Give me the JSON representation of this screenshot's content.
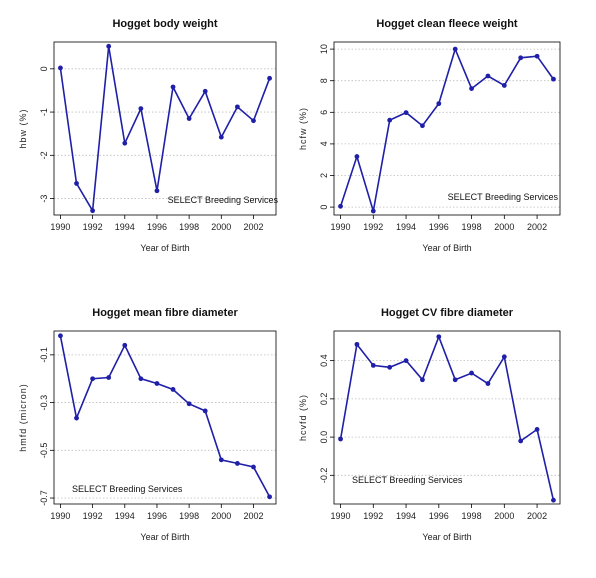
{
  "chart_data": [
    {
      "type": "line",
      "title": "Hogget body weight",
      "xlabel": "Year of Birth",
      "ylabel": "hbw (%)",
      "annotation": "SELECT Breeding Services",
      "x": [
        1990,
        1991,
        1992,
        1993,
        1994,
        1995,
        1996,
        1997,
        1998,
        1999,
        2000,
        2001,
        2002,
        2003
      ],
      "values": [
        0.02,
        -2.65,
        -3.28,
        0.52,
        -1.72,
        -0.92,
        -2.82,
        -0.42,
        -1.15,
        -0.52,
        -1.58,
        -0.88,
        -1.2,
        -0.22
      ],
      "xticks": [
        "1990",
        "1992",
        "1994",
        "1996",
        "1998",
        "2000",
        "2002"
      ],
      "yticks": [
        "-3",
        "-2",
        "-1",
        "0"
      ],
      "xlim": [
        1989.6,
        2003.4
      ],
      "ylim": [
        -3.38,
        0.62
      ],
      "grid": "y",
      "color": "#1f1fa8"
    },
    {
      "type": "line",
      "title": "Hogget clean fleece weight",
      "xlabel": "Year of Birth",
      "ylabel": "hcfw (%)",
      "annotation": "SELECT Breeding Services",
      "x": [
        1990,
        1991,
        1992,
        1993,
        1994,
        1995,
        1996,
        1997,
        1998,
        1999,
        2000,
        2001,
        2002,
        2003
      ],
      "values": [
        0.05,
        3.2,
        -0.25,
        5.5,
        5.98,
        5.15,
        6.55,
        10.0,
        7.5,
        8.3,
        7.7,
        9.45,
        9.55,
        8.1
      ],
      "xticks": [
        "1990",
        "1992",
        "1994",
        "1996",
        "1998",
        "2000",
        "2002"
      ],
      "yticks": [
        "0",
        "2",
        "4",
        "6",
        "8",
        "10"
      ],
      "xlim": [
        1989.6,
        2003.4
      ],
      "ylim": [
        -0.5,
        10.45
      ],
      "grid": "y",
      "color": "#1f1fa8"
    },
    {
      "type": "line",
      "title": "Hogget mean fibre diameter",
      "xlabel": "Year of Birth",
      "ylabel": "hmfd (micron)",
      "annotation": "SELECT Breeding Services",
      "x": [
        1990,
        1991,
        1992,
        1993,
        1994,
        1995,
        1996,
        1997,
        1998,
        1999,
        2000,
        2001,
        2002,
        2003
      ],
      "values": [
        -0.02,
        -0.365,
        -0.2,
        -0.195,
        -0.06,
        -0.2,
        -0.22,
        -0.245,
        -0.305,
        -0.335,
        -0.54,
        -0.555,
        -0.57,
        -0.695
      ],
      "xticks": [
        "1990",
        "1992",
        "1994",
        "1996",
        "1998",
        "2000",
        "2002"
      ],
      "yticks": [
        "-0.7",
        "-0.5",
        "-0.3",
        "-0.1"
      ],
      "xlim": [
        1989.6,
        2003.4
      ],
      "ylim": [
        -0.725,
        0.0
      ],
      "grid": "y",
      "color": "#1f1fa8"
    },
    {
      "type": "line",
      "title": "Hogget CV fibre diameter",
      "xlabel": "Year of Birth",
      "ylabel": "hcvfd (%)",
      "annotation": "SELECT Breeding Services",
      "x": [
        1990,
        1991,
        1992,
        1993,
        1994,
        1995,
        1996,
        1997,
        1998,
        1999,
        2000,
        2001,
        2002,
        2003
      ],
      "values": [
        -0.01,
        0.485,
        0.375,
        0.365,
        0.4,
        0.3,
        0.525,
        0.3,
        0.335,
        0.28,
        0.42,
        -0.02,
        0.04,
        -0.33
      ],
      "xticks": [
        "1990",
        "1992",
        "1994",
        "1996",
        "1998",
        "2000",
        "2002"
      ],
      "yticks": [
        "-0.2",
        "0.0",
        "0.2",
        "0.4"
      ],
      "xlim": [
        1989.6,
        2003.4
      ],
      "ylim": [
        -0.35,
        0.555
      ],
      "grid": "y",
      "color": "#1f1fa8"
    }
  ]
}
